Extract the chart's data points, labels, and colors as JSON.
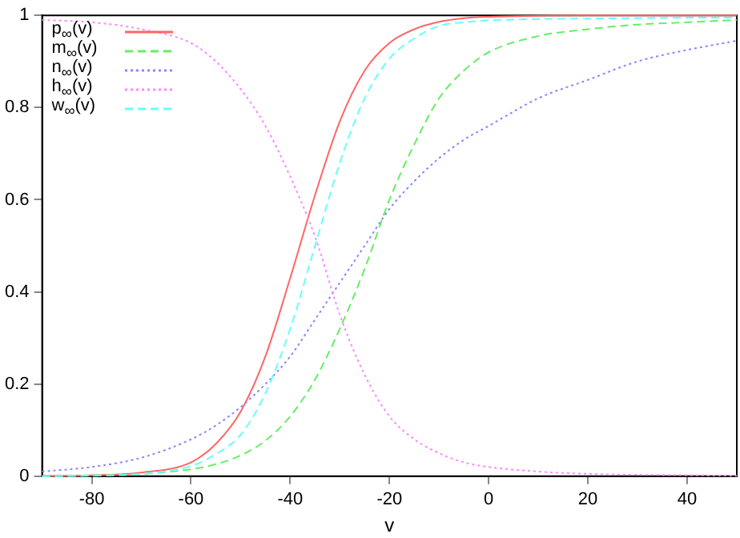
{
  "chart_data": {
    "type": "line",
    "xlabel": "v",
    "x": [
      -90,
      -80,
      -70,
      -60,
      -55,
      -50,
      -45,
      -40,
      -35,
      -30,
      -25,
      -20,
      -15,
      -10,
      -5,
      0,
      10,
      20,
      30,
      40,
      50
    ],
    "xlim": [
      -90,
      50
    ],
    "xticks": [
      -80,
      -60,
      -40,
      -20,
      0,
      20,
      40
    ],
    "ylim": [
      0,
      1
    ],
    "yticks": [
      0,
      0.2,
      0.4,
      0.6,
      0.8,
      1
    ],
    "legend": "top left",
    "marker": "none",
    "series": [
      {
        "name": "p$_{∞}$(v)",
        "color": "#ff6666",
        "line_style": "solid",
        "values": [
          0.0,
          0.002,
          0.008,
          0.03,
          0.07,
          0.14,
          0.26,
          0.43,
          0.61,
          0.77,
          0.88,
          0.94,
          0.97,
          0.986,
          0.994,
          0.997,
          0.999,
          1,
          1,
          1,
          1
        ]
      },
      {
        "name": "m$_{∞}$(v)",
        "color": "#66ee66",
        "line_style": "dashed",
        "values": [
          0.0,
          0.002,
          0.005,
          0.015,
          0.026,
          0.045,
          0.077,
          0.13,
          0.21,
          0.32,
          0.45,
          0.6,
          0.72,
          0.82,
          0.88,
          0.92,
          0.955,
          0.97,
          0.98,
          0.985,
          0.99
        ]
      },
      {
        "name": "n$_{∞}$(v)",
        "color": "#8888ff",
        "line_style": "dotted",
        "values": [
          0.01,
          0.02,
          0.04,
          0.08,
          0.11,
          0.15,
          0.2,
          0.26,
          0.34,
          0.42,
          0.5,
          0.58,
          0.64,
          0.69,
          0.73,
          0.76,
          0.82,
          0.86,
          0.9,
          0.925,
          0.945
        ]
      },
      {
        "name": "h$_{∞}$(v)",
        "color": "#ff88ff",
        "line_style": "dotted",
        "values": [
          0.99,
          0.985,
          0.97,
          0.94,
          0.9,
          0.84,
          0.76,
          0.65,
          0.52,
          0.35,
          0.22,
          0.13,
          0.08,
          0.05,
          0.03,
          0.02,
          0.01,
          0.005,
          0.003,
          0.002,
          0.001
        ]
      },
      {
        "name": "w$_{∞}$(v)",
        "color": "#66ffff",
        "line_style": "dashed",
        "values": [
          0.0,
          0.001,
          0.005,
          0.022,
          0.048,
          0.09,
          0.18,
          0.32,
          0.5,
          0.68,
          0.82,
          0.906,
          0.95,
          0.977,
          0.985,
          0.989,
          0.992,
          0.993,
          0.994,
          0.995,
          0.995
        ]
      }
    ]
  }
}
